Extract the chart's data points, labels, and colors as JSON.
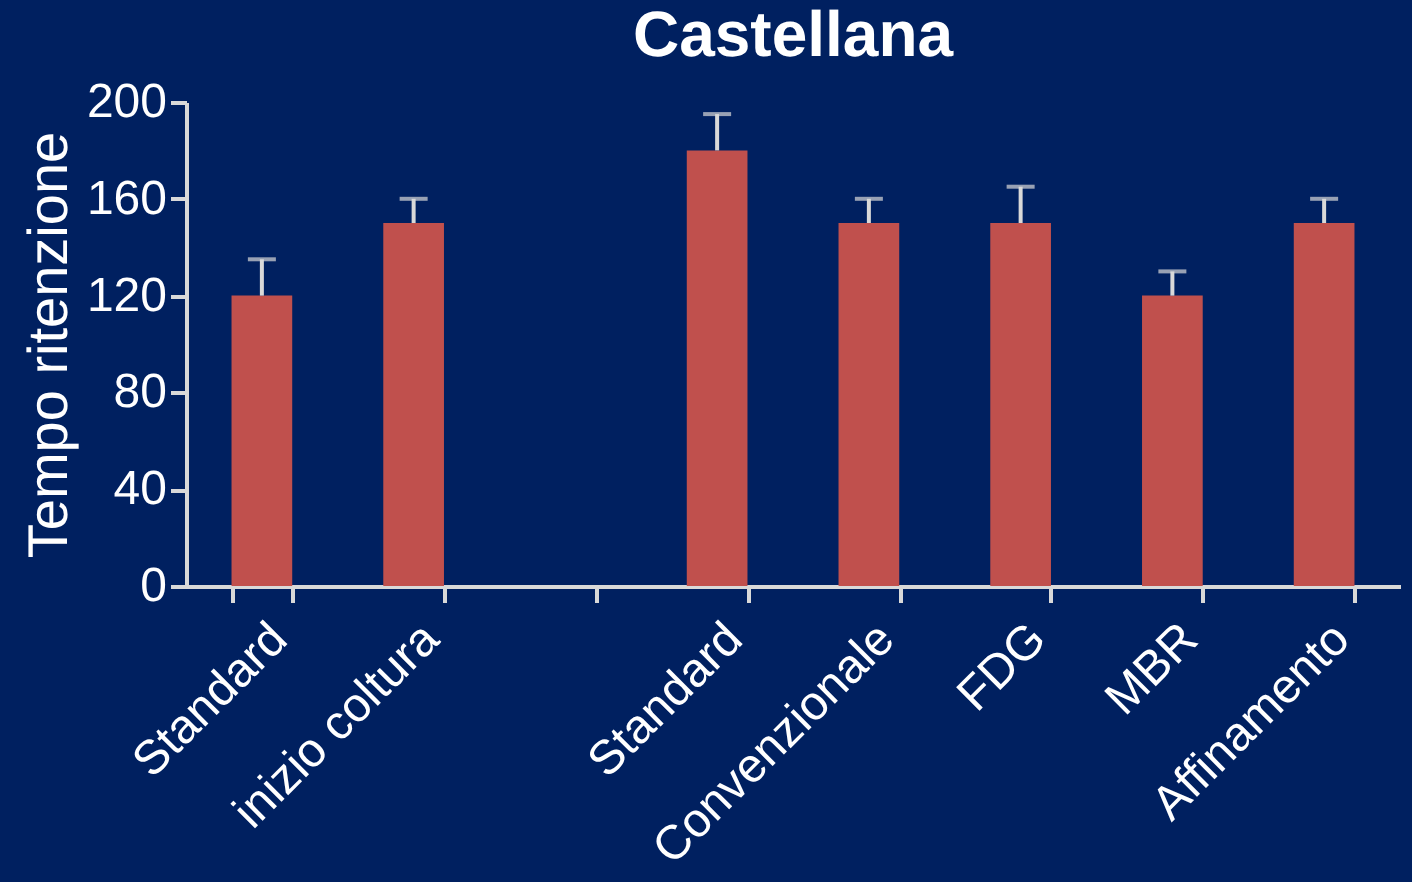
{
  "chart_data": {
    "type": "bar",
    "title": "Castellana",
    "ylabel": "Tempo ritenzione",
    "categories": [
      "Standard",
      "inizio coltura",
      null,
      "Standard",
      "Convenzionale",
      "FDG",
      "MBR",
      "Affinamento"
    ],
    "values": [
      120,
      150,
      null,
      180,
      150,
      150,
      120,
      150
    ],
    "errors": [
      [
        120,
        135
      ],
      [
        150,
        160
      ],
      null,
      [
        180,
        195
      ],
      [
        150,
        160
      ],
      [
        150,
        165
      ],
      [
        120,
        130
      ],
      [
        150,
        160
      ]
    ],
    "color": "#c0504d",
    "ylim": [
      0,
      200
    ],
    "yticks": [
      0,
      40,
      80,
      120,
      160,
      200
    ],
    "grid": false
  }
}
